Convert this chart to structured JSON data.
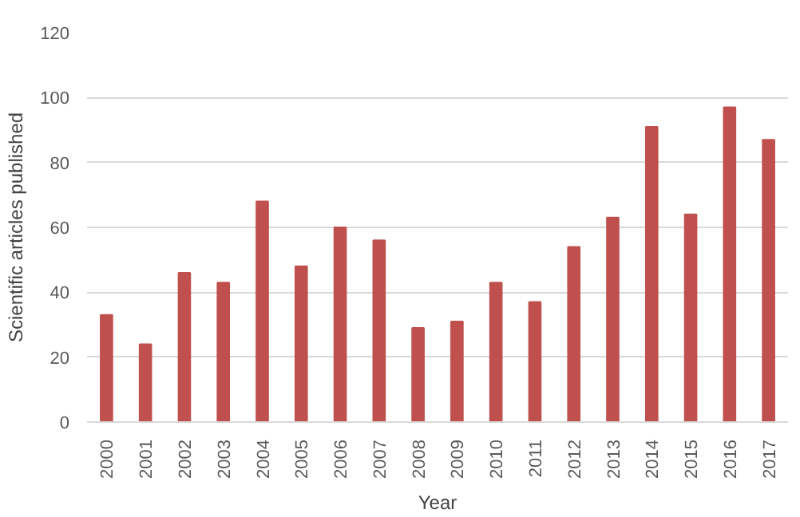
{
  "chart_data": {
    "type": "bar",
    "xlabel": "Year",
    "ylabel": "Scientific articles published",
    "categories": [
      "2000",
      "2001",
      "2002",
      "2003",
      "2004",
      "2005",
      "2006",
      "2007",
      "2008",
      "2009",
      "2010",
      "2011",
      "2012",
      "2013",
      "2014",
      "2015",
      "2016",
      "2017"
    ],
    "values": [
      33,
      24,
      46,
      43,
      68,
      48,
      60,
      56,
      29,
      31,
      43,
      37,
      54,
      63,
      91,
      64,
      97,
      87
    ],
    "color": "#c0504d",
    "ylim": [
      0,
      120
    ],
    "yticks": [
      0,
      20,
      40,
      60,
      80,
      100,
      120
    ],
    "grid": "y"
  }
}
